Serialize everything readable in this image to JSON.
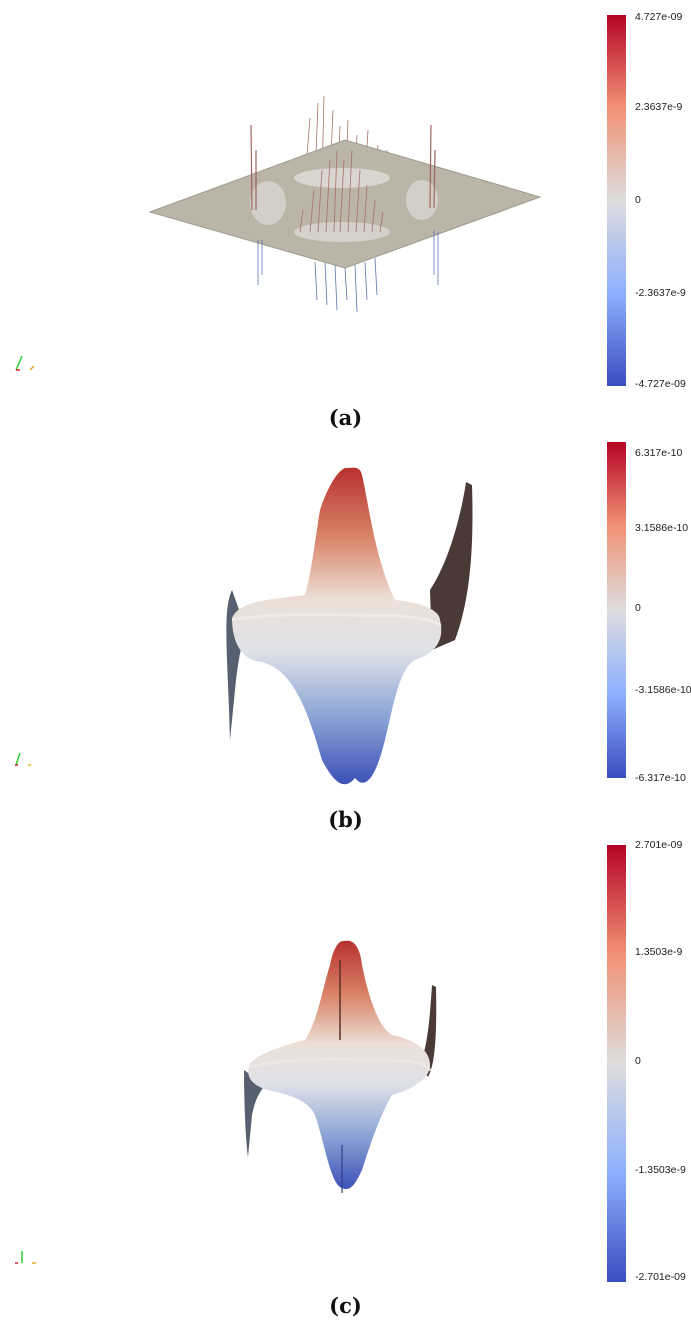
{
  "panels": [
    {
      "id": "a",
      "caption": "(a)",
      "colorbar": {
        "max": "4.727e-09",
        "upper": "2.3637e-9",
        "zero": "0",
        "lower": "-2.3637e-9",
        "min": "-4.727e-09"
      }
    },
    {
      "id": "b",
      "caption": "(b)",
      "colorbar": {
        "max": "6.317e-10",
        "upper": "3.1586e-10",
        "zero": "0",
        "lower": "-3.1586e-10",
        "min": "-6.317e-10"
      }
    },
    {
      "id": "c",
      "caption": "(c)",
      "colorbar": {
        "max": "2.701e-09",
        "upper": "1.3503e-9",
        "zero": "0",
        "lower": "-1.3503e-9",
        "min": "-2.701e-09"
      }
    }
  ],
  "colormap": {
    "high": "#b40426",
    "mid": "#dddddd",
    "low": "#3b4cc0"
  }
}
